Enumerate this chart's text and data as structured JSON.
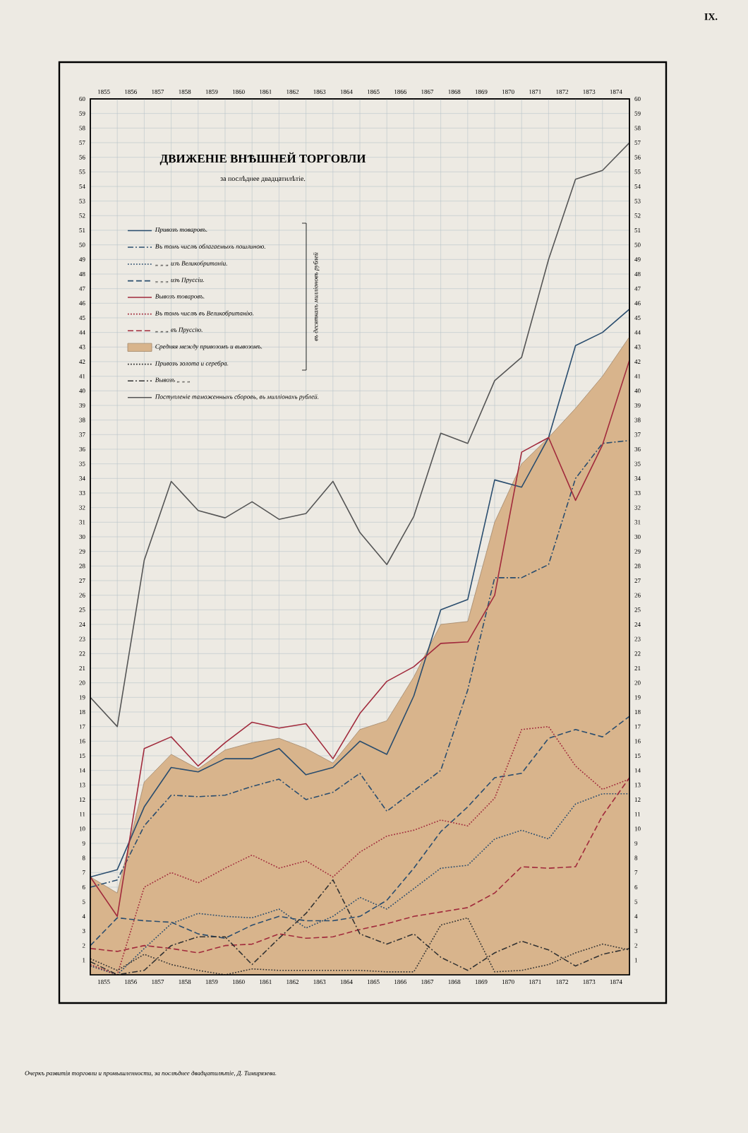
{
  "chart_data": {
    "type": "line",
    "title": "ДВИЖЕНІЕ ВНѢШНЕЙ ТОРГОВЛИ",
    "subtitle": "за послѣднее двадцатилѣтіе.",
    "annotations": [
      "IX.",
      "въ десяткахъ милліоновъ рублей",
      "Очеркъ развитія торговли и промышленности, за послѣднее двадцатилѣтіе, Д. Тимирязева."
    ],
    "x": [
      1855,
      1856,
      1857,
      1858,
      1859,
      1860,
      1861,
      1862,
      1863,
      1864,
      1865,
      1866,
      1867,
      1868,
      1869,
      1870,
      1871,
      1872,
      1873,
      1874,
      1875
    ],
    "xlim": [
      1855,
      1875
    ],
    "xticks": [
      {
        "value": 1855.5,
        "label": "1855"
      },
      {
        "value": 1856.5,
        "label": "1856"
      },
      {
        "value": 1857.5,
        "label": "1857"
      },
      {
        "value": 1858.5,
        "label": "1858"
      },
      {
        "value": 1859.5,
        "label": "1859"
      },
      {
        "value": 1860.5,
        "label": "1860"
      },
      {
        "value": 1861.5,
        "label": "1861"
      },
      {
        "value": 1862.5,
        "label": "1862"
      },
      {
        "value": 1863.5,
        "label": "1863"
      },
      {
        "value": 1864.5,
        "label": "1864"
      },
      {
        "value": 1865.5,
        "label": "1865"
      },
      {
        "value": 1866.5,
        "label": "1866"
      },
      {
        "value": 1867.5,
        "label": "1867"
      },
      {
        "value": 1868.5,
        "label": "1868"
      },
      {
        "value": 1869.5,
        "label": "1869"
      },
      {
        "value": 1870.5,
        "label": "1870"
      },
      {
        "value": 1871.5,
        "label": "1871"
      },
      {
        "value": 1872.5,
        "label": "1872"
      },
      {
        "value": 1873.5,
        "label": "1873"
      },
      {
        "value": 1874.5,
        "label": "1874"
      },
      {
        "value": 1855,
        "label": null
      },
      {
        "value": 1856,
        "label": null
      },
      {
        "value": 1857,
        "label": null
      },
      {
        "value": 1858,
        "label": null
      },
      {
        "value": 1859,
        "label": null
      },
      {
        "value": 1860,
        "label": null
      },
      {
        "value": 1861,
        "label": null
      },
      {
        "value": 1862,
        "label": null
      },
      {
        "value": 1863,
        "label": null
      },
      {
        "value": 1864,
        "label": null
      },
      {
        "value": 1865,
        "label": null
      },
      {
        "value": 1866,
        "label": null
      },
      {
        "value": 1867,
        "label": null
      },
      {
        "value": 1868,
        "label": null
      },
      {
        "value": 1869,
        "label": null
      },
      {
        "value": 1870,
        "label": null
      },
      {
        "value": 1871,
        "label": null
      },
      {
        "value": 1872,
        "label": null
      },
      {
        "value": 1873,
        "label": null
      },
      {
        "value": 1874,
        "label": null
      },
      {
        "value": 1875,
        "label": null
      }
    ],
    "x2lim": [
      1855,
      1875
    ],
    "x2ticks": [
      {
        "value": 1855.5,
        "label": "1855"
      },
      {
        "value": 1856.5,
        "label": "1856"
      },
      {
        "value": 1857.5,
        "label": "1857"
      },
      {
        "value": 1858.5,
        "label": "1858"
      },
      {
        "value": 1859.5,
        "label": "1859"
      },
      {
        "value": 1860.5,
        "label": "1860"
      },
      {
        "value": 1861.5,
        "label": "1861"
      },
      {
        "value": 1862.5,
        "label": "1862"
      },
      {
        "value": 1863.5,
        "label": "1863"
      },
      {
        "value": 1864.5,
        "label": "1864"
      },
      {
        "value": 1865.5,
        "label": "1865"
      },
      {
        "value": 1866.5,
        "label": "1866"
      },
      {
        "value": 1867.5,
        "label": "1867"
      },
      {
        "value": 1868.5,
        "label": "1868"
      },
      {
        "value": 1869.5,
        "label": "1869"
      },
      {
        "value": 1870.5,
        "label": "1870"
      },
      {
        "value": 1871.5,
        "label": "1871"
      },
      {
        "value": 1872.5,
        "label": "1872"
      },
      {
        "value": 1873.5,
        "label": "1873"
      },
      {
        "value": 1874.5,
        "label": "1874"
      }
    ],
    "ylim": [
      0,
      60
    ],
    "yticks": [
      1,
      2,
      3,
      4,
      5,
      6,
      7,
      8,
      9,
      10,
      11,
      12,
      13,
      14,
      15,
      16,
      17,
      18,
      19,
      20,
      21,
      22,
      23,
      24,
      25,
      26,
      27,
      28,
      29,
      30,
      31,
      32,
      33,
      34,
      35,
      36,
      37,
      38,
      39,
      40,
      41,
      42,
      43,
      44,
      45,
      46,
      47,
      48,
      49,
      50,
      51,
      52,
      53,
      54,
      55,
      56,
      57,
      58,
      59,
      60
    ],
    "y2lim": [
      0,
      60
    ],
    "y2ticks": [
      1,
      2,
      3,
      4,
      5,
      6,
      7,
      8,
      9,
      10,
      11,
      12,
      13,
      14,
      15,
      16,
      17,
      18,
      19,
      20,
      21,
      22,
      23,
      24,
      25,
      26,
      27,
      28,
      29,
      30,
      31,
      32,
      33,
      34,
      35,
      36,
      37,
      38,
      39,
      40,
      41,
      42,
      43,
      44,
      45,
      46,
      47,
      48,
      49,
      50,
      51,
      52,
      53,
      54,
      55,
      56,
      57,
      58,
      59,
      60
    ],
    "grid": true,
    "legend": "top left",
    "series": [
      {
        "name": "Привозъ товаровъ.",
        "color": "#2a4d6e",
        "line_style": "solid",
        "values": [
          6.7,
          7.2,
          11.5,
          14.2,
          13.9,
          14.8,
          14.8,
          15.5,
          13.7,
          14.2,
          16.0,
          15.1,
          19.1,
          25.0,
          25.7,
          33.9,
          33.4,
          36.8,
          43.1,
          44.0,
          45.6
        ]
      },
      {
        "name": "Въ томъ числѣ облагаемыхъ пошлиною.",
        "color": "#2a4d6e",
        "line_style": "dashdot",
        "values": [
          6.0,
          6.5,
          10.2,
          12.3,
          12.2,
          12.3,
          12.9,
          13.4,
          12.0,
          12.5,
          13.8,
          11.2,
          12.6,
          14.0,
          19.5,
          27.2,
          27.2,
          28.1,
          34.0,
          36.4,
          36.6
        ]
      },
      {
        "name": "„ „ „ изъ Великобританіи.",
        "color": "#2a4d6e",
        "line_style": "dotted",
        "values": [
          0.6,
          0.0,
          1.8,
          3.5,
          4.2,
          4.0,
          3.9,
          4.5,
          3.2,
          4.0,
          5.3,
          4.5,
          5.9,
          7.3,
          7.5,
          9.3,
          9.9,
          9.3,
          11.7,
          12.4,
          12.4
        ]
      },
      {
        "name": "„ „ „ изъ Пруссіи.",
        "color": "#2a4d6e",
        "line_style": "dashed",
        "values": [
          2.0,
          3.9,
          3.7,
          3.6,
          2.8,
          2.5,
          3.4,
          4.0,
          3.7,
          3.7,
          4.0,
          5.1,
          7.3,
          9.8,
          11.5,
          13.5,
          13.8,
          16.2,
          16.8,
          16.3,
          17.7
        ]
      },
      {
        "name": "Вывозъ товаровъ.",
        "color": "#a12a3c",
        "line_style": "solid",
        "values": [
          6.7,
          4.0,
          15.5,
          16.3,
          14.3,
          15.9,
          17.3,
          16.9,
          17.2,
          14.8,
          17.9,
          20.1,
          21.1,
          22.7,
          22.8,
          26.0,
          35.8,
          36.8,
          32.5,
          36.3,
          42.1
        ]
      },
      {
        "name": "Въ томъ числѣ въ Великобританію.",
        "color": "#a12a3c",
        "line_style": "dotted",
        "values": [
          0.7,
          0.0,
          6.0,
          7.0,
          6.3,
          7.3,
          8.2,
          7.3,
          7.8,
          6.7,
          8.4,
          9.5,
          9.9,
          10.6,
          10.2,
          12.1,
          16.8,
          17.0,
          14.3,
          12.7,
          13.4
        ]
      },
      {
        "name": "„ „ „ въ Пруссію.",
        "color": "#a12a3c",
        "line_style": "dashed",
        "values": [
          1.8,
          1.6,
          2.0,
          1.8,
          1.5,
          2.0,
          2.1,
          2.8,
          2.5,
          2.6,
          3.1,
          3.5,
          4.0,
          4.3,
          4.6,
          5.6,
          7.4,
          7.3,
          7.4,
          10.9,
          13.5
        ]
      },
      {
        "name": "Средняя между привозомъ и вывозомъ.",
        "color": "#d8b48c",
        "type": "area",
        "values": [
          6.7,
          5.6,
          13.2,
          15.1,
          14.1,
          15.4,
          15.9,
          16.2,
          15.5,
          14.5,
          16.8,
          17.4,
          20.4,
          24.0,
          24.2,
          31.0,
          35.0,
          36.8,
          38.8,
          41.0,
          43.7
        ]
      },
      {
        "name": "Привозъ золота и серебра.",
        "color": "#333333",
        "line_style": "dotted",
        "values": [
          1.1,
          0.3,
          1.4,
          0.7,
          0.3,
          0.0,
          0.4,
          0.3,
          0.3,
          0.3,
          0.3,
          0.2,
          0.2,
          3.4,
          3.9,
          0.2,
          0.3,
          0.7,
          1.5,
          2.1,
          1.7
        ]
      },
      {
        "name": "Вывозъ „ „ „",
        "color": "#333333",
        "line_style": "dashdot",
        "values": [
          0.9,
          0.0,
          0.3,
          2.0,
          2.6,
          2.6,
          0.7,
          2.5,
          4.2,
          6.5,
          2.8,
          2.1,
          2.8,
          1.2,
          0.3,
          1.5,
          2.3,
          1.7,
          0.6,
          1.4,
          1.8
        ]
      },
      {
        "name": "Поступленіе таможенныхъ сборовъ, въ милліонахъ рублей.",
        "color": "#555555",
        "line_style": "solid",
        "values": [
          19.0,
          17.0,
          28.4,
          33.8,
          31.8,
          31.3,
          32.4,
          31.2,
          31.6,
          33.8,
          30.3,
          28.1,
          31.4,
          37.1,
          36.4,
          40.7,
          42.3,
          49.0,
          54.5,
          55.1,
          57.0
        ]
      }
    ]
  }
}
